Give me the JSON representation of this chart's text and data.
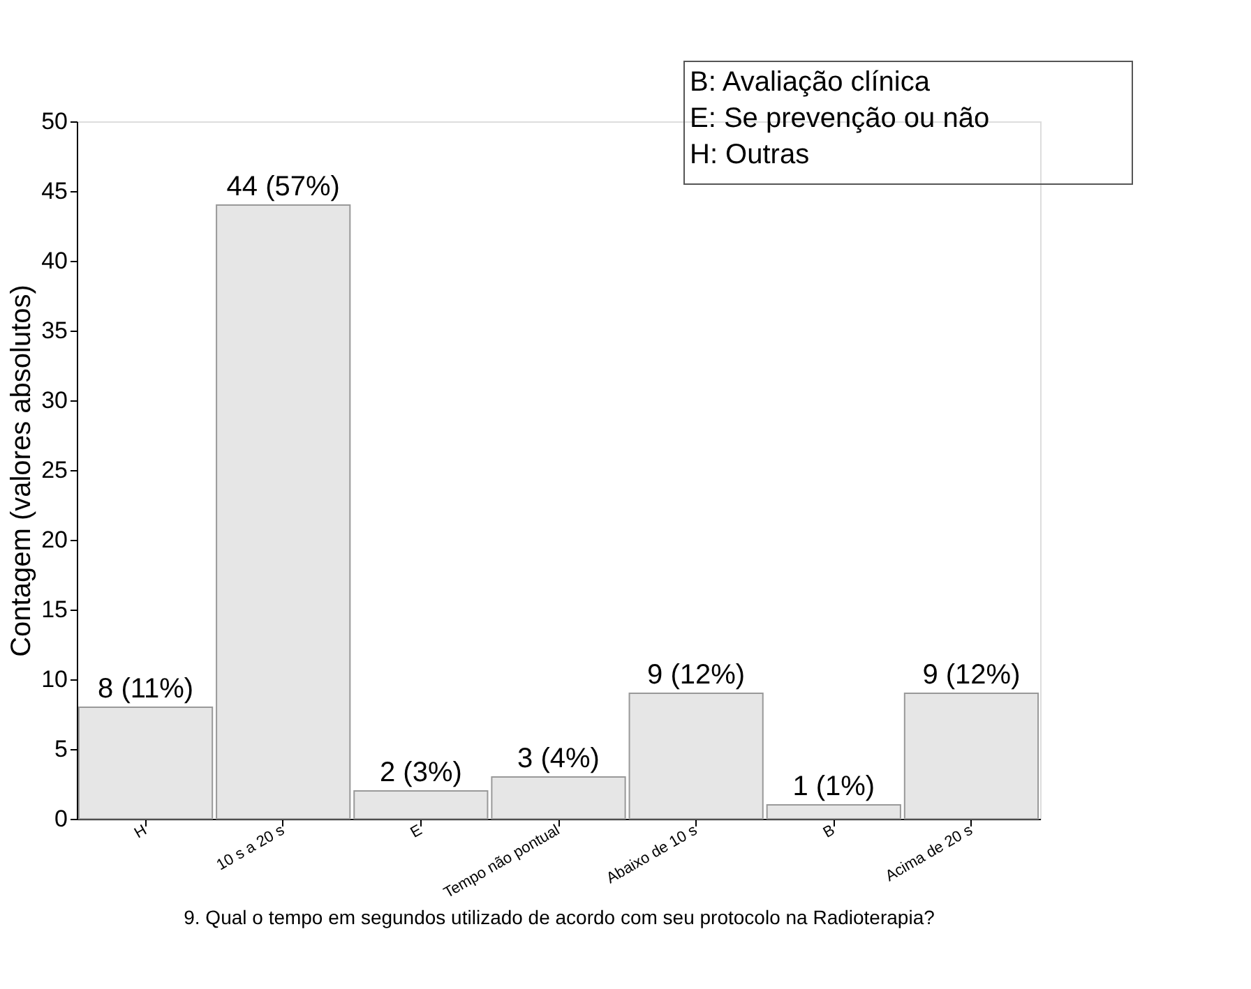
{
  "chart_data": {
    "type": "bar",
    "xlabel": "9.  Qual o tempo em segundos utilizado de acordo com seu protocolo na Radioterapia?",
    "ylabel": "Contagem (valores absolutos)",
    "categories": [
      "H",
      "10 s a 20 s",
      "E",
      "Tempo não pontual",
      "Abaixo de 10 s",
      "B",
      "Acima de 20 s"
    ],
    "values": [
      8,
      44,
      2,
      3,
      9,
      1,
      9
    ],
    "value_labels": [
      "8 (11%)",
      "44 (57%)",
      "2 (3%)",
      "3 (4%)",
      "9 (12%)",
      "1 (1%)",
      "9 (12%)"
    ],
    "color": "#e6e6e6",
    "ylim": [
      0,
      50
    ],
    "yticks": [
      0,
      5,
      10,
      15,
      20,
      25,
      30,
      35,
      40,
      45,
      50
    ],
    "grid": false,
    "annotations": [
      "B: Avaliação clínica",
      "E: Se prevenção ou não",
      "H: Outras"
    ]
  }
}
